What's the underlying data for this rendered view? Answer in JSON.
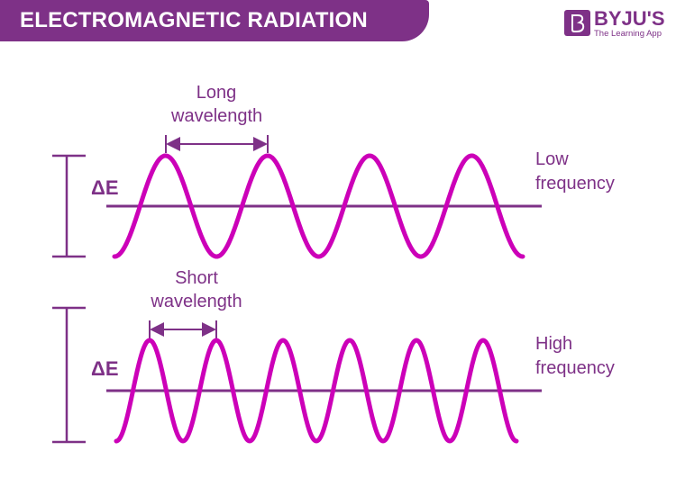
{
  "header": {
    "title": "ELECTROMAGNETIC RADIATION"
  },
  "logo": {
    "name": "BYJU'S",
    "tagline": "The Learning App"
  },
  "colors": {
    "brand": "#7e3187",
    "wave": "#cc00b8"
  },
  "top_panel": {
    "wavelength_label": [
      "Long",
      "wavelength"
    ],
    "energy_label": "ΔE",
    "frequency_label": [
      "Low",
      "frequency"
    ],
    "cycles": 4
  },
  "bottom_panel": {
    "wavelength_label": [
      "Short",
      "wavelength"
    ],
    "energy_label": "ΔE",
    "frequency_label": [
      "High",
      "frequency"
    ],
    "cycles": 6
  }
}
